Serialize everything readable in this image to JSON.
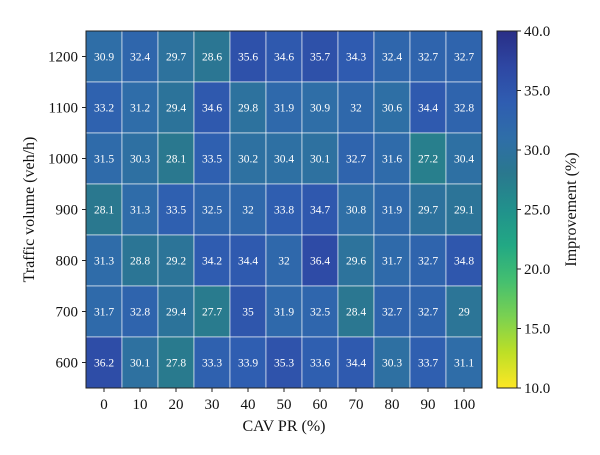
{
  "chart_data": {
    "type": "heatmap",
    "xlabel": "CAV PR (%)",
    "ylabel": "Traffic volume (veh/h)",
    "colorbar_label": "Improvement (%)",
    "x_categories": [
      "0",
      "10",
      "20",
      "30",
      "40",
      "50",
      "60",
      "70",
      "80",
      "90",
      "100"
    ],
    "y_categories": [
      "1200",
      "1100",
      "1000",
      "900",
      "800",
      "700",
      "600"
    ],
    "values": [
      [
        "30.9",
        "32.4",
        "29.7",
        "28.6",
        "35.6",
        "34.6",
        "35.7",
        "34.3",
        "32.4",
        "32.7",
        "32.7"
      ],
      [
        "33.2",
        "31.2",
        "29.4",
        "34.6",
        "29.8",
        "31.9",
        "30.9",
        "32",
        "30.6",
        "34.4",
        "32.8"
      ],
      [
        "31.5",
        "30.3",
        "28.1",
        "33.5",
        "30.2",
        "30.4",
        "30.1",
        "32.7",
        "31.6",
        "27.2",
        "30.4"
      ],
      [
        "28.1",
        "31.3",
        "33.5",
        "32.5",
        "32",
        "33.8",
        "34.7",
        "30.8",
        "31.9",
        "29.7",
        "29.1"
      ],
      [
        "31.3",
        "28.8",
        "29.2",
        "34.2",
        "34.4",
        "32",
        "36.4",
        "29.6",
        "31.7",
        "32.7",
        "34.8"
      ],
      [
        "31.7",
        "32.8",
        "29.4",
        "27.7",
        "35",
        "31.9",
        "32.5",
        "28.4",
        "32.7",
        "32.7",
        "29"
      ],
      [
        "36.2",
        "30.1",
        "27.8",
        "33.3",
        "33.9",
        "35.3",
        "33.6",
        "34.4",
        "30.3",
        "33.7",
        "31.1"
      ]
    ],
    "color_range": [
      10.0,
      40.0
    ],
    "colorbar_ticks": [
      "10.0",
      "15.0",
      "20.0",
      "25.0",
      "30.0",
      "35.0",
      "40.0"
    ],
    "colormap": "viridis-like (yellow low to dark blue high)",
    "colormap_colors": [
      "#fde725",
      "#bddf26",
      "#7ad151",
      "#44bf70",
      "#22a884",
      "#21918c",
      "#2a788e",
      "#2f6ea8",
      "#2f5db1",
      "#2e47a3",
      "#292e86"
    ]
  }
}
